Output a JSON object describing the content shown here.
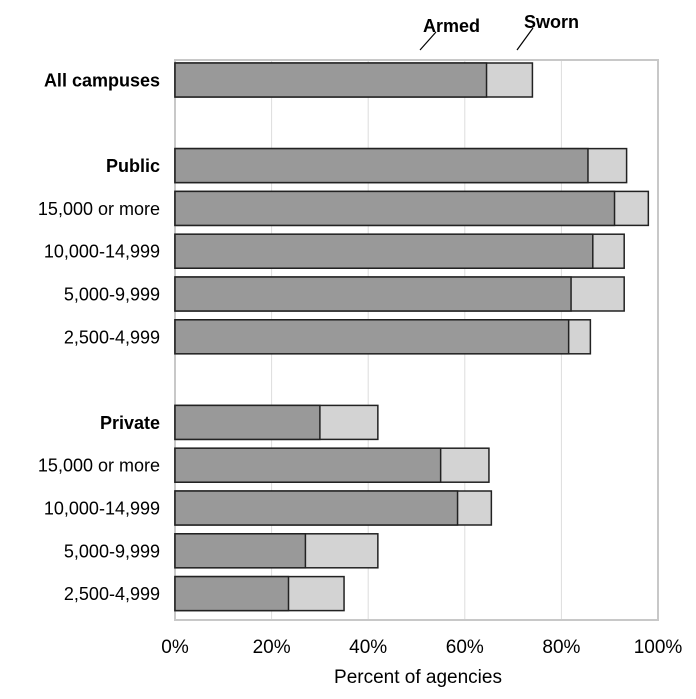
{
  "chart_data": {
    "type": "bar",
    "orientation": "horizontal",
    "stacking": "overlay",
    "xlabel": "Percent of agencies",
    "xlim": [
      0,
      100
    ],
    "x_ticks": [
      0,
      20,
      40,
      60,
      80,
      100
    ],
    "x_tick_labels": [
      "0%",
      "20%",
      "40%",
      "60%",
      "80%",
      "100%"
    ],
    "grid": "vertical",
    "legend_placement": "top",
    "categories": [
      {
        "label": "All campuses",
        "bold": true
      },
      {
        "label": "",
        "bold": false,
        "spacer": true
      },
      {
        "label": "Public",
        "bold": true
      },
      {
        "label": "15,000 or more",
        "bold": false
      },
      {
        "label": "10,000-14,999",
        "bold": false
      },
      {
        "label": "5,000-9,999",
        "bold": false
      },
      {
        "label": "2,500-4,999",
        "bold": false
      },
      {
        "label": "",
        "bold": false,
        "spacer": true
      },
      {
        "label": "Private",
        "bold": true
      },
      {
        "label": "15,000 or more",
        "bold": false
      },
      {
        "label": "10,000-14,999",
        "bold": false
      },
      {
        "label": "5,000-9,999",
        "bold": false
      },
      {
        "label": "2,500-4,999",
        "bold": false
      }
    ],
    "series": [
      {
        "name": "Armed",
        "color": "#999999",
        "values": [
          64.5,
          null,
          85.5,
          91,
          86.5,
          82,
          81.5,
          null,
          30,
          55,
          58.5,
          27,
          23.5
        ]
      },
      {
        "name": "Sworn",
        "color": "#d3d3d3",
        "values": [
          74,
          null,
          93.5,
          98,
          93,
          93,
          86,
          null,
          42,
          65,
          65.5,
          42,
          35
        ]
      }
    ]
  },
  "colors": {
    "armed_fill": "#999999",
    "sworn_fill": "#d3d3d3",
    "bar_stroke": "#222222",
    "grid": "#dddddd",
    "frame": "#c8c8c8"
  }
}
